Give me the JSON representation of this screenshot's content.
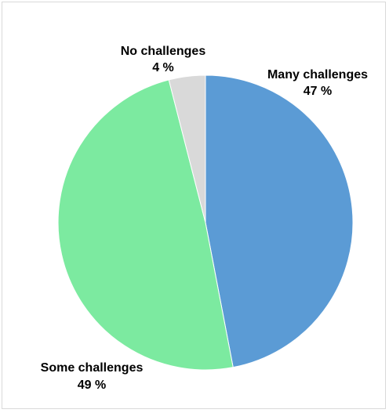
{
  "chart_data": {
    "type": "pie",
    "title": "",
    "slices": [
      {
        "label": "Many challenges",
        "value": 47,
        "value_text": "47 %",
        "color": "#5b9bd5"
      },
      {
        "label": "Some challenges",
        "value": 49,
        "value_text": "49 %",
        "color": "#7ceaa0"
      },
      {
        "label": "No challenges",
        "value": 4,
        "value_text": "4 %",
        "color": "#d9d9d9"
      }
    ],
    "start_angle": "12 o'clock",
    "direction": "clockwise",
    "legend": "none",
    "data_labels": "outside, category name and percentage"
  }
}
